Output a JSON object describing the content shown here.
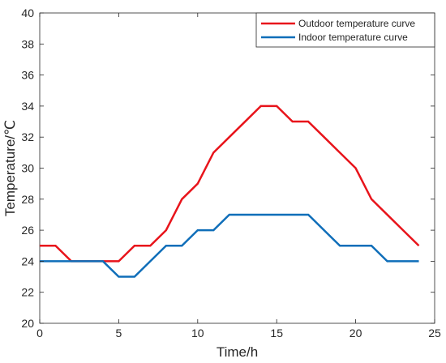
{
  "chart_data": {
    "type": "line",
    "title": "",
    "xlabel": "Time/h",
    "ylabel": "Temperature/℃",
    "xlim": [
      0,
      25
    ],
    "ylim": [
      20,
      40
    ],
    "xticks": [
      0,
      5,
      10,
      15,
      20,
      25
    ],
    "yticks": [
      20,
      22,
      24,
      26,
      28,
      30,
      32,
      34,
      36,
      38,
      40
    ],
    "grid": false,
    "legend_position": "top-right",
    "series": [
      {
        "name": "Outdoor temperature curve",
        "color": "#e8141b",
        "x": [
          0,
          1,
          2,
          3,
          4,
          5,
          6,
          7,
          8,
          9,
          10,
          11,
          12,
          13,
          14,
          15,
          16,
          17,
          18,
          19,
          20,
          21,
          22,
          23,
          24
        ],
        "y": [
          25,
          25,
          24,
          24,
          24,
          24,
          25,
          25,
          26,
          28,
          29,
          31,
          32,
          33,
          34,
          34,
          33,
          33,
          32,
          31,
          30,
          28,
          27,
          26,
          25
        ]
      },
      {
        "name": "Indoor temperature curve",
        "color": "#0f6eb9",
        "x": [
          0,
          1,
          2,
          3,
          4,
          5,
          6,
          7,
          8,
          9,
          10,
          11,
          12,
          13,
          14,
          15,
          16,
          17,
          18,
          19,
          20,
          21,
          22,
          23,
          24
        ],
        "y": [
          24,
          24,
          24,
          24,
          24,
          23,
          23,
          24,
          25,
          25,
          26,
          26,
          27,
          27,
          27,
          27,
          27,
          27,
          26,
          25,
          25,
          25,
          24,
          24,
          24
        ]
      }
    ]
  }
}
